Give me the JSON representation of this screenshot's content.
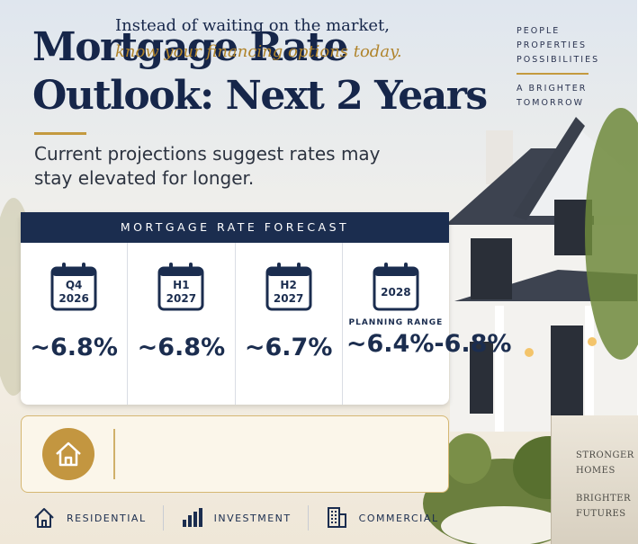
{
  "brand": {
    "lines": [
      "PEOPLE",
      "PROPERTIES",
      "POSSIBILITIES"
    ],
    "tagline": [
      "A BRIGHTER",
      "TOMORROW"
    ]
  },
  "header": {
    "title_lines": [
      "Mortgage Rate",
      "Outlook: Next 2 Years"
    ],
    "subtitle": "Current projections suggest rates may stay elevated for longer."
  },
  "forecast": {
    "title": "MORTGAGE RATE FORECAST",
    "periods": [
      {
        "label": [
          "Q4",
          "2026"
        ],
        "value": "~6.8%"
      },
      {
        "label": [
          "H1",
          "2027"
        ],
        "value": "~6.8%"
      },
      {
        "label": [
          "H2",
          "2027"
        ],
        "value": "~6.7%"
      },
      {
        "label": [
          "2028"
        ],
        "note": "PLANNING RANGE",
        "value": "~6.4%-6.8%"
      }
    ]
  },
  "callout": {
    "lines": [
      "Instead of waiting on the market,",
      "know your financing options today."
    ]
  },
  "footer": {
    "items": [
      "RESIDENTIAL",
      "INVESTMENT",
      "COMMERCIAL"
    ]
  },
  "sign": {
    "lines": [
      "STRONGER",
      "HOMES",
      "BRIGHTER",
      "FUTURES"
    ]
  }
}
